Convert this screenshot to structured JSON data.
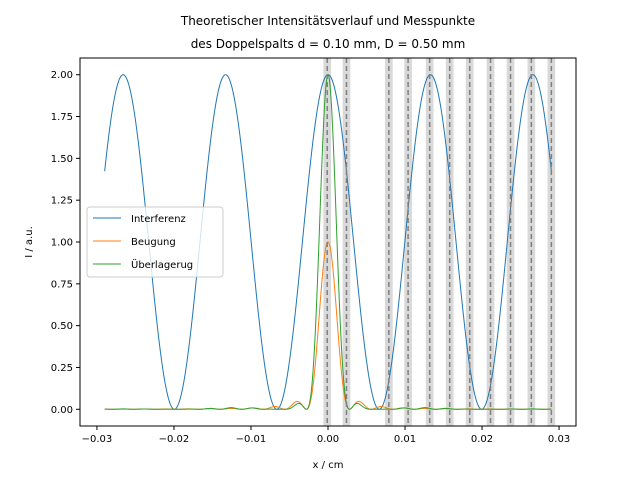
{
  "chart_data": {
    "type": "line",
    "title_line1": "Theoretischer Intensitätsverlauf und Messpunkte",
    "title_line2": "des Doppelspalts d = 0.10 mm, D = 0.50 mm",
    "xlabel": "x / cm",
    "ylabel": "I / a.u.",
    "xlim": [
      -0.0322,
      0.0322
    ],
    "ylim": [
      -0.1,
      2.1
    ],
    "x_ticks": [
      -0.03,
      -0.02,
      -0.01,
      0.0,
      0.01,
      0.02,
      0.03
    ],
    "x_tick_labels": [
      "−0.03",
      "−0.02",
      "−0.01",
      "0.00",
      "0.01",
      "0.02",
      "0.03"
    ],
    "y_ticks": [
      0.0,
      0.25,
      0.5,
      0.75,
      1.0,
      1.25,
      1.5,
      1.75,
      2.0
    ],
    "y_tick_labels": [
      "0.00",
      "0.25",
      "0.50",
      "0.75",
      "1.00",
      "1.25",
      "1.50",
      "1.75",
      "2.00"
    ],
    "x_range": [
      -0.029,
      0.029
    ],
    "legend_position": "center-left",
    "series": [
      {
        "name": "Interferenz",
        "color": "#1f77b4",
        "model": "2*cos^2(pi*x/0.0133)",
        "period": 0.0133,
        "amplitude": 2.0
      },
      {
        "name": "Beugung",
        "color": "#ff7f0e",
        "model": "sinc^2(x/0.0028)",
        "first_zero": 0.0028,
        "amplitude": 1.0
      },
      {
        "name": "Überlagerug",
        "color": "#2ca02c",
        "model": "Interferenz*Beugung"
      }
    ],
    "measurement_points": [
      -0.0001,
      0.0024,
      0.0079,
      0.0104,
      0.0132,
      0.0158,
      0.0184,
      0.0211,
      0.0237,
      0.0264,
      0.029
    ],
    "measurement_band_halfwidth": 0.0005,
    "measurement_line_color": "#808080",
    "measurement_band_color": "#d9d9d9"
  }
}
